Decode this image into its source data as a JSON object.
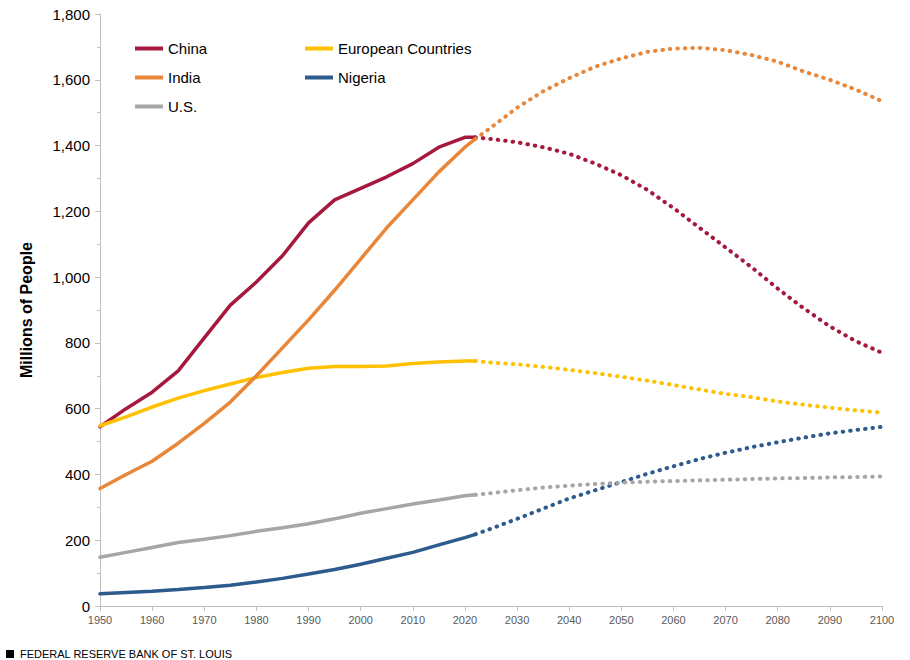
{
  "chart_data": {
    "type": "line",
    "y_label": "Millions of People",
    "source": "FEDERAL RESERVE BANK OF ST. LOUIS",
    "x": [
      1950,
      1955,
      1960,
      1965,
      1970,
      1975,
      1980,
      1985,
      1990,
      1995,
      2000,
      2005,
      2010,
      2015,
      2020,
      2022,
      2025,
      2030,
      2035,
      2040,
      2045,
      2050,
      2055,
      2060,
      2065,
      2070,
      2075,
      2080,
      2085,
      2090,
      2095,
      2100
    ],
    "xlim": [
      1950,
      2100
    ],
    "xticks": [
      1950,
      1960,
      1970,
      1980,
      1990,
      2000,
      2010,
      2020,
      2030,
      2040,
      2050,
      2060,
      2070,
      2080,
      2090,
      2100
    ],
    "ylim": [
      0,
      1800
    ],
    "yticks": [
      0,
      200,
      400,
      600,
      800,
      {
        "value": 1000,
        "label": "1,000"
      },
      {
        "value": 1200,
        "label": "1,200"
      },
      {
        "value": 1400,
        "label": "1,400"
      },
      {
        "value": 1600,
        "label": "1,600"
      },
      {
        "value": 1800,
        "label": "1,800"
      }
    ],
    "grid": false,
    "legend": "upper left",
    "series": [
      {
        "name": "China",
        "color": "#A6193F",
        "line_style": "solid",
        "values": [
          545,
          600,
          650,
          715,
          815,
          915,
          985,
          1065,
          1165,
          1235,
          1270,
          1305,
          1345,
          1395,
          1425,
          1425,
          null,
          null,
          null,
          null,
          null,
          null,
          null,
          null,
          null,
          null,
          null,
          null,
          null,
          null,
          null,
          null
        ]
      },
      {
        "name": "China",
        "color": "#A6193F",
        "line_style": "dotted",
        "values": [
          null,
          null,
          null,
          null,
          null,
          null,
          null,
          null,
          null,
          null,
          null,
          null,
          null,
          null,
          null,
          1425,
          1420,
          1410,
          1395,
          1375,
          1345,
          1310,
          1265,
          1210,
          1150,
          1090,
          1030,
          965,
          905,
          850,
          805,
          770
        ]
      },
      {
        "name": "European Countries",
        "color": "#FFC000",
        "line_style": "solid",
        "values": [
          548,
          575,
          605,
          632,
          655,
          675,
          695,
          710,
          723,
          728,
          728,
          730,
          737,
          742,
          745,
          745,
          null,
          null,
          null,
          null,
          null,
          null,
          null,
          null,
          null,
          null,
          null,
          null,
          null,
          null,
          null,
          null
        ]
      },
      {
        "name": "European Countries",
        "color": "#FFC000",
        "line_style": "dotted",
        "values": [
          null,
          null,
          null,
          null,
          null,
          null,
          null,
          null,
          null,
          null,
          null,
          null,
          null,
          null,
          null,
          745,
          740,
          735,
          727,
          718,
          708,
          697,
          685,
          672,
          658,
          645,
          635,
          622,
          612,
          603,
          595,
          588
        ]
      },
      {
        "name": "India",
        "color": "#E8873A",
        "line_style": "solid",
        "values": [
          357,
          400,
          440,
          495,
          555,
          620,
          700,
          785,
          870,
          960,
          1055,
          1150,
          1235,
          1320,
          1395,
          1420,
          null,
          null,
          null,
          null,
          null,
          null,
          null,
          null,
          null,
          null,
          null,
          null,
          null,
          null,
          null,
          null
        ]
      },
      {
        "name": "India",
        "color": "#E8873A",
        "line_style": "dotted",
        "values": [
          null,
          null,
          null,
          null,
          null,
          null,
          null,
          null,
          null,
          null,
          null,
          null,
          null,
          null,
          null,
          1420,
          1455,
          1515,
          1565,
          1605,
          1640,
          1665,
          1685,
          1695,
          1697,
          1690,
          1675,
          1655,
          1625,
          1600,
          1570,
          1535
        ]
      },
      {
        "name": "Nigeria",
        "color": "#2E5B8E",
        "line_style": "solid",
        "values": [
          37,
          41,
          45,
          50,
          56,
          63,
          73,
          84,
          97,
          111,
          127,
          145,
          163,
          186,
          208,
          218,
          null,
          null,
          null,
          null,
          null,
          null,
          null,
          null,
          null,
          null,
          null,
          null,
          null,
          null,
          null,
          null
        ]
      },
      {
        "name": "Nigeria",
        "color": "#2E5B8E",
        "line_style": "dotted",
        "values": [
          null,
          null,
          null,
          null,
          null,
          null,
          null,
          null,
          null,
          null,
          null,
          null,
          null,
          null,
          null,
          218,
          235,
          265,
          296,
          327,
          352,
          377,
          402,
          425,
          447,
          466,
          483,
          498,
          512,
          525,
          535,
          545
        ]
      },
      {
        "name": "U.S.",
        "color": "#A6A6A6",
        "line_style": "solid",
        "values": [
          148,
          163,
          178,
          193,
          203,
          214,
          227,
          238,
          250,
          265,
          282,
          296,
          310,
          322,
          335,
          338,
          null,
          null,
          null,
          null,
          null,
          null,
          null,
          null,
          null,
          null,
          null,
          null,
          null,
          null,
          null,
          null
        ]
      },
      {
        "name": "U.S.",
        "color": "#A6A6A6",
        "line_style": "dotted",
        "values": [
          null,
          null,
          null,
          null,
          null,
          null,
          null,
          null,
          null,
          null,
          null,
          null,
          null,
          null,
          null,
          338,
          343,
          352,
          360,
          366,
          371,
          375,
          378,
          380,
          382,
          384,
          386,
          388,
          389,
          391,
          392,
          394
        ]
      }
    ]
  }
}
